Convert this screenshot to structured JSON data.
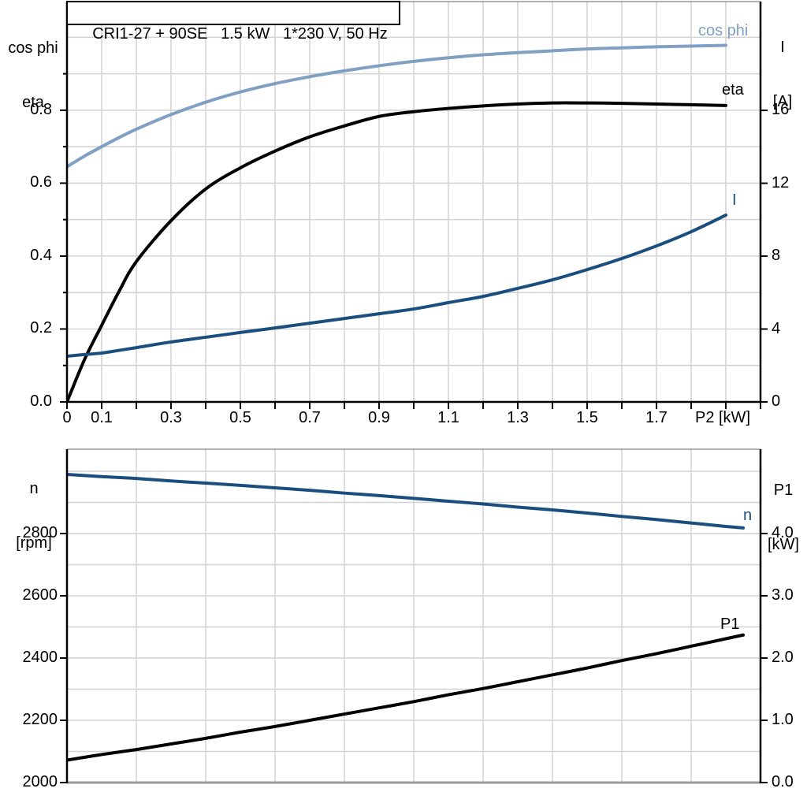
{
  "panel": {
    "background": "#ffffff"
  },
  "colors": {
    "light_blue": "#7FA0C2",
    "dark_blue": "#1A4E7E",
    "black": "#000000",
    "grid": "#D2D2D2",
    "axis": "#000000",
    "border_gray": "#999999"
  },
  "chart_data": [
    {
      "type": "line",
      "title": "CRI1-27 + 90SE   1.5 kW   1*230 V, 50 Hz",
      "x_axis": {
        "title": "P2 [kW]",
        "min": 0,
        "max": 2.0,
        "grid_step": 0.1,
        "tick_step": 0.1,
        "labeled_ticks": [
          {
            "v": 0,
            "t": "0"
          },
          {
            "v": 0.1,
            "t": "0.1"
          },
          {
            "v": 0.3,
            "t": "0.3"
          },
          {
            "v": 0.5,
            "t": "0.5"
          },
          {
            "v": 0.7,
            "t": "0.7"
          },
          {
            "v": 0.9,
            "t": "0.9"
          },
          {
            "v": 1.1,
            "t": "1.1"
          },
          {
            "v": 1.3,
            "t": "1.3"
          },
          {
            "v": 1.5,
            "t": "1.5"
          },
          {
            "v": 1.7,
            "t": "1.7"
          }
        ]
      },
      "left_axis": {
        "title_line1": "cos phi",
        "title_line2": "eta",
        "min": 0,
        "max": 1.098,
        "grid_step": 0.1,
        "labeled_ticks": [
          {
            "v": 0.0,
            "t": "0.0"
          },
          {
            "v": 0.2,
            "t": "0.2"
          },
          {
            "v": 0.4,
            "t": "0.4"
          },
          {
            "v": 0.6,
            "t": "0.6"
          },
          {
            "v": 0.8,
            "t": "0.8"
          }
        ],
        "minor_ticks": [
          0.1,
          0.3,
          0.5,
          0.7,
          0.9
        ]
      },
      "right_axis": {
        "title_line1": "I",
        "title_line2": "[A]",
        "min": 0,
        "max": 21.97,
        "labeled_ticks": [
          {
            "v": 0,
            "t": "0"
          },
          {
            "v": 4,
            "t": "4"
          },
          {
            "v": 8,
            "t": "8"
          },
          {
            "v": 12,
            "t": "12"
          },
          {
            "v": 16,
            "t": "16"
          }
        ],
        "minor_ticks": []
      },
      "series": [
        {
          "label": "cos phi",
          "axis": "left",
          "color": "light_blue",
          "x": [
            0,
            0.05,
            0.1,
            0.15,
            0.2,
            0.3,
            0.4,
            0.5,
            0.6,
            0.7,
            0.8,
            0.9,
            1.0,
            1.1,
            1.2,
            1.3,
            1.4,
            1.5,
            1.6,
            1.7,
            1.8,
            1.9
          ],
          "y": [
            0.645,
            0.674,
            0.7,
            0.725,
            0.748,
            0.788,
            0.822,
            0.85,
            0.873,
            0.892,
            0.908,
            0.922,
            0.934,
            0.944,
            0.952,
            0.958,
            0.963,
            0.968,
            0.971,
            0.974,
            0.976,
            0.978
          ]
        },
        {
          "label": "eta",
          "axis": "left",
          "color": "black",
          "x": [
            0,
            0.05,
            0.1,
            0.15,
            0.2,
            0.3,
            0.4,
            0.5,
            0.6,
            0.7,
            0.8,
            0.9,
            1.0,
            1.1,
            1.2,
            1.3,
            1.4,
            1.5,
            1.6,
            1.7,
            1.8,
            1.9
          ],
          "y": [
            0.0,
            0.115,
            0.21,
            0.303,
            0.385,
            0.497,
            0.584,
            0.642,
            0.688,
            0.727,
            0.757,
            0.783,
            0.796,
            0.805,
            0.812,
            0.817,
            0.82,
            0.82,
            0.819,
            0.817,
            0.815,
            0.813
          ]
        },
        {
          "label": "I",
          "axis": "right",
          "color": "dark_blue",
          "x": [
            0,
            0.05,
            0.1,
            0.15,
            0.2,
            0.3,
            0.4,
            0.5,
            0.6,
            0.7,
            0.8,
            0.9,
            1.0,
            1.1,
            1.2,
            1.3,
            1.4,
            1.5,
            1.6,
            1.7,
            1.8,
            1.9
          ],
          "y": [
            2.51,
            2.6,
            2.68,
            2.83,
            2.98,
            3.29,
            3.55,
            3.81,
            4.06,
            4.32,
            4.58,
            4.84,
            5.1,
            5.45,
            5.79,
            6.23,
            6.7,
            7.26,
            7.87,
            8.56,
            9.34,
            10.25
          ]
        }
      ]
    },
    {
      "type": "line",
      "title": "",
      "x_axis": {
        "title": "",
        "min": 0,
        "max": 2.0,
        "grid_step": 0.2,
        "tick_step": 0,
        "labeled_ticks": []
      },
      "left_axis": {
        "title_line1": "n",
        "title_line2": "[rpm]",
        "min": 2000,
        "max": 3071,
        "grid_step": 100,
        "labeled_ticks": [
          {
            "v": 2000,
            "t": "2000"
          },
          {
            "v": 2200,
            "t": "2200"
          },
          {
            "v": 2400,
            "t": "2400"
          },
          {
            "v": 2600,
            "t": "2600"
          },
          {
            "v": 2800,
            "t": "2800"
          }
        ],
        "minor_ticks": []
      },
      "right_axis": {
        "title_line1": "P1",
        "title_line2": "[kW]",
        "min": 0,
        "max": 5.354,
        "labeled_ticks": [
          {
            "v": 0,
            "t": "0.0"
          },
          {
            "v": 1,
            "t": "1.0"
          },
          {
            "v": 2,
            "t": "2.0"
          },
          {
            "v": 3,
            "t": "3.0"
          },
          {
            "v": 4,
            "t": "4.0"
          }
        ],
        "minor_ticks": []
      },
      "series": [
        {
          "label": "n",
          "axis": "left",
          "color": "dark_blue",
          "x": [
            0,
            0.1,
            0.2,
            0.3,
            0.4,
            0.5,
            0.6,
            0.7,
            0.8,
            0.9,
            1.0,
            1.1,
            1.2,
            1.3,
            1.4,
            1.5,
            1.6,
            1.7,
            1.8,
            1.9,
            1.95
          ],
          "y": [
            2990,
            2983,
            2977,
            2969,
            2962,
            2955,
            2947,
            2939,
            2930,
            2922,
            2913,
            2904,
            2895,
            2885,
            2876,
            2866,
            2855,
            2845,
            2834,
            2823,
            2818
          ]
        },
        {
          "label": "P1",
          "axis": "right",
          "color": "black",
          "x": [
            0,
            0.1,
            0.2,
            0.3,
            0.4,
            0.5,
            0.6,
            0.7,
            0.8,
            0.9,
            1.0,
            1.1,
            1.2,
            1.3,
            1.4,
            1.5,
            1.6,
            1.7,
            1.8,
            1.9,
            1.95
          ],
          "y": [
            0.36,
            0.45,
            0.53,
            0.62,
            0.71,
            0.81,
            0.9,
            1.0,
            1.1,
            1.2,
            1.3,
            1.41,
            1.51,
            1.62,
            1.73,
            1.84,
            1.96,
            2.07,
            2.19,
            2.31,
            2.37
          ]
        }
      ]
    }
  ]
}
